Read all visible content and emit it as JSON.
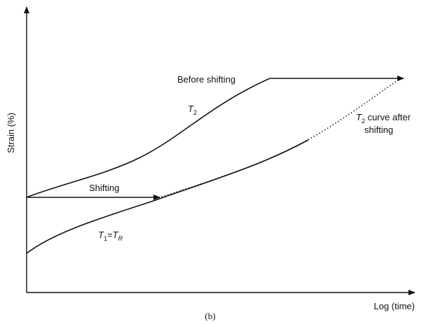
{
  "axes": {
    "y_label": "Strain (%)",
    "x_label": "Log (time)"
  },
  "labels": {
    "before_shifting": "Before shifting",
    "t2": {
      "main": "T",
      "sub": "2"
    },
    "t2_after": {
      "main": "T",
      "sub": "2",
      "rest": " curve after",
      "line2": "shifting"
    },
    "shifting": "Shifting",
    "t1": {
      "main": "T",
      "sub": "1",
      "eq": "=T",
      "sub2": "R"
    }
  },
  "caption": "(b)"
}
